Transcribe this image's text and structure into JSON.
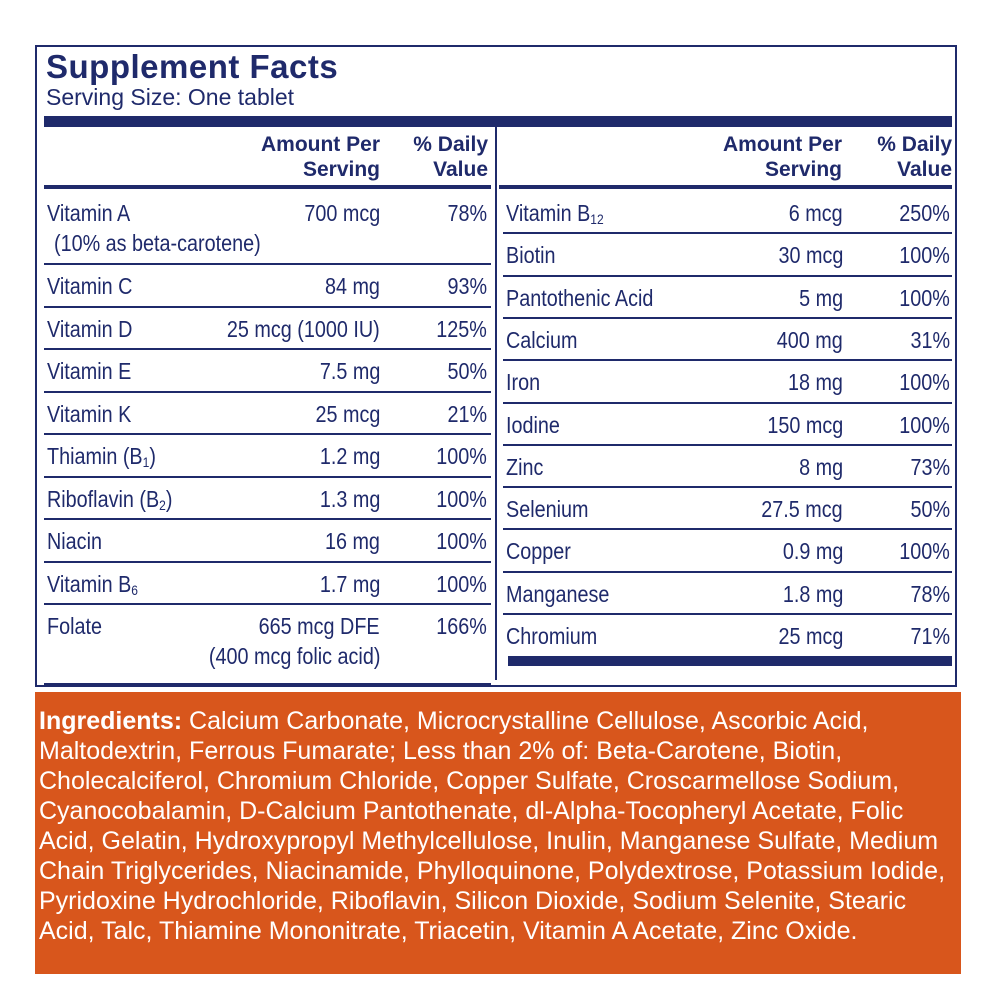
{
  "header": {
    "title": "Supplement Facts",
    "serving": "Serving Size: One tablet"
  },
  "columns": {
    "amount_line1": "Amount Per",
    "amount_line2": "Serving",
    "dv_line1": "% Daily",
    "dv_line2": "Value"
  },
  "left_rows": [
    {
      "name": "Vitamin A",
      "name_sub": "",
      "name_suffix": "",
      "amount": "700 mcg",
      "dv": "78%",
      "note": "(10% as beta-carotene)"
    },
    {
      "name": "Vitamin C",
      "name_sub": "",
      "name_suffix": "",
      "amount": "84 mg",
      "dv": "93%",
      "note": ""
    },
    {
      "name": "Vitamin D",
      "name_sub": "",
      "name_suffix": "",
      "amount": "25 mcg (1000 IU)",
      "dv": "125%",
      "note": ""
    },
    {
      "name": "Vitamin E",
      "name_sub": "",
      "name_suffix": "",
      "amount": "7.5 mg",
      "dv": "50%",
      "note": ""
    },
    {
      "name": "Vitamin K",
      "name_sub": "",
      "name_suffix": "",
      "amount": "25 mcg",
      "dv": "21%",
      "note": ""
    },
    {
      "name": "Thiamin (B",
      "name_sub": "1",
      "name_suffix": ")",
      "amount": "1.2 mg",
      "dv": "100%",
      "note": ""
    },
    {
      "name": "Riboflavin (B",
      "name_sub": "2",
      "name_suffix": ")",
      "amount": "1.3 mg",
      "dv": "100%",
      "note": ""
    },
    {
      "name": "Niacin",
      "name_sub": "",
      "name_suffix": "",
      "amount": "16 mg",
      "dv": "100%",
      "note": ""
    },
    {
      "name": "Vitamin B",
      "name_sub": "6",
      "name_suffix": "",
      "amount": "1.7 mg",
      "dv": "100%",
      "note": ""
    },
    {
      "name": "Folate",
      "name_sub": "",
      "name_suffix": "",
      "amount": "665 mcg DFE",
      "dv": "166%",
      "note": "(400 mcg folic acid)"
    }
  ],
  "right_rows": [
    {
      "name": "Vitamin B",
      "name_sub": "12",
      "name_suffix": "",
      "amount": "6 mcg",
      "dv": "250%"
    },
    {
      "name": "Biotin",
      "name_sub": "",
      "name_suffix": "",
      "amount": "30 mcg",
      "dv": "100%"
    },
    {
      "name": "Pantothenic Acid",
      "name_sub": "",
      "name_suffix": "",
      "amount": "5 mg",
      "dv": "100%"
    },
    {
      "name": "Calcium",
      "name_sub": "",
      "name_suffix": "",
      "amount": "400 mg",
      "dv": "31%"
    },
    {
      "name": "Iron",
      "name_sub": "",
      "name_suffix": "",
      "amount": "18 mg",
      "dv": "100%"
    },
    {
      "name": "Iodine",
      "name_sub": "",
      "name_suffix": "",
      "amount": "150 mcg",
      "dv": "100%"
    },
    {
      "name": "Zinc",
      "name_sub": "",
      "name_suffix": "",
      "amount": "8 mg",
      "dv": "73%"
    },
    {
      "name": "Selenium",
      "name_sub": "",
      "name_suffix": "",
      "amount": "27.5 mcg",
      "dv": "50%"
    },
    {
      "name": "Copper",
      "name_sub": "",
      "name_suffix": "",
      "amount": "0.9 mg",
      "dv": "100%"
    },
    {
      "name": "Manganese",
      "name_sub": "",
      "name_suffix": "",
      "amount": "1.8 mg",
      "dv": "78%"
    },
    {
      "name": "Chromium",
      "name_sub": "",
      "name_suffix": "",
      "amount": "25 mcg",
      "dv": "71%"
    }
  ],
  "ingredients": {
    "label": "Ingredients:",
    "text": " Calcium Carbonate, Microcrystalline Cellulose, Ascorbic Acid, Maltodextrin, Ferrous Fumarate; Less than 2% of: Beta-Carotene, Biotin, Cholecalciferol, Chromium Chloride, Copper Sulfate, Croscarmellose Sodium, Cyanocobalamin, D-Calcium Pantothenate, dl-Alpha-Tocopheryl Acetate, Folic Acid, Gelatin, Hydroxypropyl Methylcellulose, Inulin, Manganese Sulfate, Medium Chain Triglycerides, Niacinamide, Phylloquinone, Polydextrose, Potassium Iodide, Pyridoxine Hydrochloride, Riboflavin, Silicon Dioxide, Sodium Selenite, Stearic Acid, Talc, Thiamine Mononitrate, Triacetin, Vitamin A Acetate, Zinc Oxide."
  },
  "colors": {
    "navy": "#1f2a6b",
    "ingredients_bg": "#d8561c"
  }
}
